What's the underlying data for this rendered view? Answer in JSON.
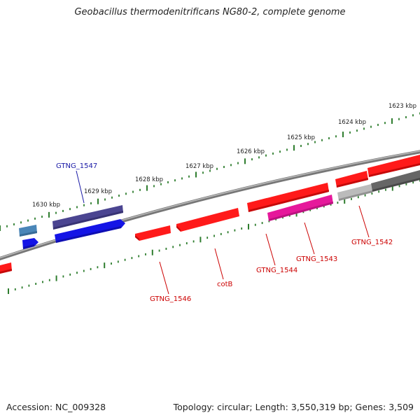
{
  "title": "Geobacillus thermodenitrificans NG80-2, complete genome",
  "footer": {
    "accession": "Accession: NC_009328",
    "summary": "Topology: circular; Length: 3,550,319 bp; Genes: 3,509"
  },
  "ticks": [
    "1623 kbp",
    "1624 kbp",
    "1625 kbp",
    "1626 kbp",
    "1627 kbp",
    "1628 kbp",
    "1629 kbp",
    "1630 kbp"
  ],
  "genes": [
    "GTNG_1547",
    "GTNG_1546",
    "cotB",
    "GTNG_1544",
    "GTNG_1543",
    "GTNG_1542"
  ],
  "colors": {
    "backbone": "#888888",
    "scale": "#2e7d2e",
    "forward": "#ff1a1a",
    "reverse": "#1414e6",
    "navy": "#4b4591",
    "magenta": "#e6189b",
    "gray": "#8a8a8a",
    "steel": "#4a86b8",
    "label_red": "#cc0000",
    "label_blue": "#1a1aa6"
  }
}
